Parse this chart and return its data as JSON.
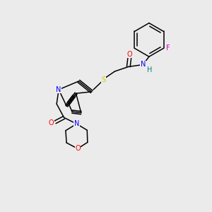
{
  "bg_color": "#ebebeb",
  "bond_color": "#000000",
  "atom_colors": {
    "O": "#ff0000",
    "N": "#0000ff",
    "S": "#cccc00",
    "F": "#cc00cc",
    "H": "#008080",
    "C": "#000000"
  },
  "font_size": 7.0,
  "lw": 1.1
}
